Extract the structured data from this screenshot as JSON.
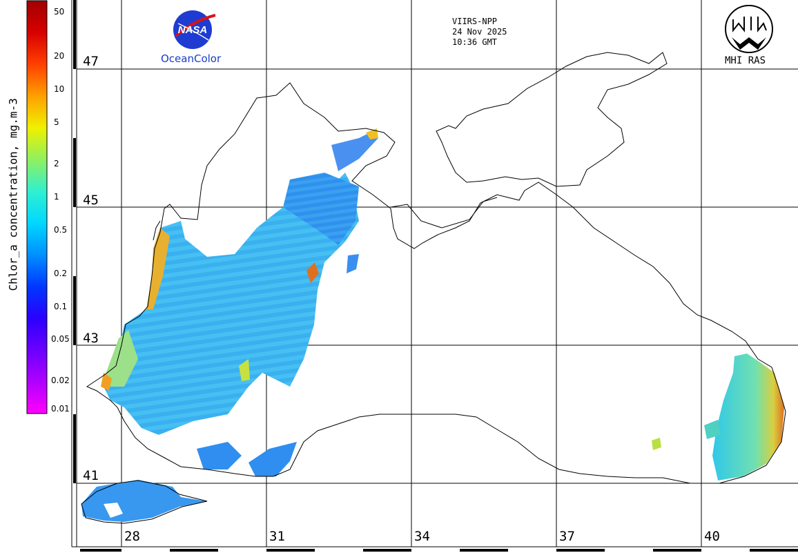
{
  "colorbar": {
    "title": "Chlor_a concentration, mg.m-3",
    "ticks": [
      "50",
      "20",
      "10",
      "5",
      "2",
      "1",
      "0.5",
      "0.2",
      "0.1",
      "0.05",
      "0.02",
      "0.01"
    ],
    "colors": [
      "#ff00ff",
      "#b000ff",
      "#6a00ff",
      "#2a00ff",
      "#0038ff",
      "#0090ff",
      "#00d8ff",
      "#30f0d0",
      "#90f060",
      "#f0f000",
      "#ffa000",
      "#ff4000",
      "#d80000",
      "#a00000"
    ]
  },
  "latitude_labels": [
    "47",
    "45",
    "43",
    "41"
  ],
  "longitude_labels": [
    "28",
    "31",
    "34",
    "37",
    "40"
  ],
  "info": {
    "sensor": "VIIRS-NPP",
    "date": "24 Nov 2025",
    "time": "10:36 GMT"
  },
  "logos": {
    "nasa_badge": "NASA",
    "nasa_sub": "OceanColor",
    "mhi": "MHI RAS"
  },
  "palette": {
    "low": "#1e6cf5",
    "mid": "#34b8f0",
    "high": "#c8e850",
    "peak": "#f0a020",
    "coast": "#000000"
  }
}
